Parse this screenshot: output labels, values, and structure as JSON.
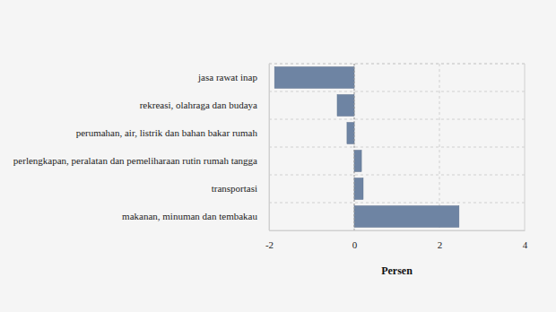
{
  "chart_data": {
    "type": "bar",
    "orientation": "horizontal",
    "categories": [
      "jasa rawat inap",
      "rekreasi, olahraga dan budaya",
      "perumahan, air, listrik dan bahan bakar rumah",
      "perlengkapan, peralatan dan pemeliharaan rutin rumah tangga",
      "transportasi",
      "makanan, minuman dan tembakau"
    ],
    "values": [
      -1.87,
      -0.4,
      -0.17,
      0.17,
      0.21,
      2.46
    ],
    "color": "#6e84a3",
    "x_label": "Persen",
    "xlim": [
      -2,
      4
    ],
    "xticks": [
      -2,
      0,
      2,
      4
    ],
    "grid": true
  }
}
